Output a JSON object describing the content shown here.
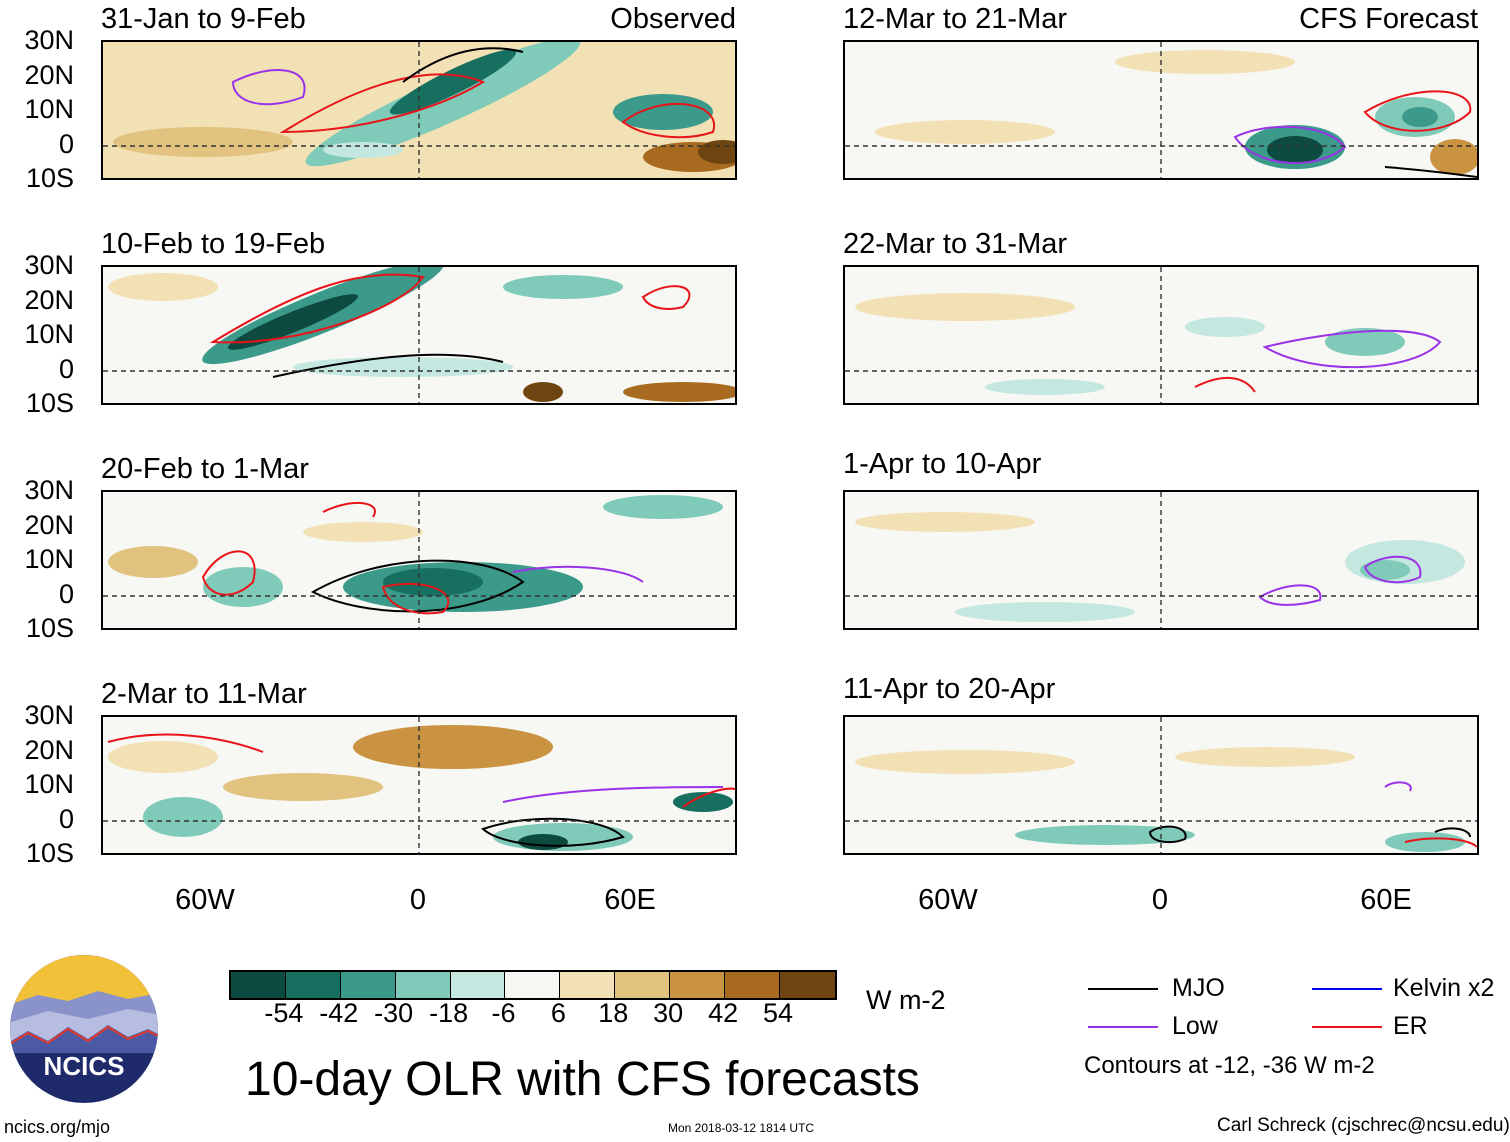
{
  "observed_label": "Observed",
  "forecast_label": "CFS Forecast",
  "panels": [
    {
      "title": "31-Jan to 9-Feb"
    },
    {
      "title": "10-Feb to 19-Feb"
    },
    {
      "title": "20-Feb to 1-Mar"
    },
    {
      "title": "2-Mar to 11-Mar"
    },
    {
      "title": "12-Mar to 21-Mar"
    },
    {
      "title": "22-Mar to 31-Mar"
    },
    {
      "title": "1-Apr to 10-Apr"
    },
    {
      "title": "11-Apr to 20-Apr"
    }
  ],
  "lat_labels": [
    "30N",
    "20N",
    "10N",
    "0",
    "10S"
  ],
  "lon_labels": [
    "60W",
    "0",
    "60E"
  ],
  "colorbar": {
    "colors": [
      "#0d4a3f",
      "#17705f",
      "#3c9a8a",
      "#7fcab9",
      "#c4e8df",
      "#f7f7f4",
      "#f3e1b6",
      "#e2c27f",
      "#c99341",
      "#a76a1e",
      "#6e4510"
    ],
    "labels": [
      "-54",
      "-42",
      "-30",
      "-18",
      "-6",
      "6",
      "18",
      "30",
      "42",
      "54"
    ],
    "units": "W m-2"
  },
  "title": "10-day OLR with CFS forecasts",
  "legend": {
    "items": [
      {
        "label": "MJO",
        "color": "#000000"
      },
      {
        "label": "Kelvin x2",
        "color": "#0000ee"
      },
      {
        "label": "Low",
        "color": "#9a33e8"
      },
      {
        "label": "ER",
        "color": "#e8141a"
      }
    ],
    "note": "Contours at -12, -36 W m-2"
  },
  "logo_text": "NCICS",
  "footer": {
    "left": "ncics.org/mjo",
    "center": "Mon 2018-03-12 1814 UTC",
    "right": "Carl Schreck (cjschrec@ncsu.edu)"
  }
}
